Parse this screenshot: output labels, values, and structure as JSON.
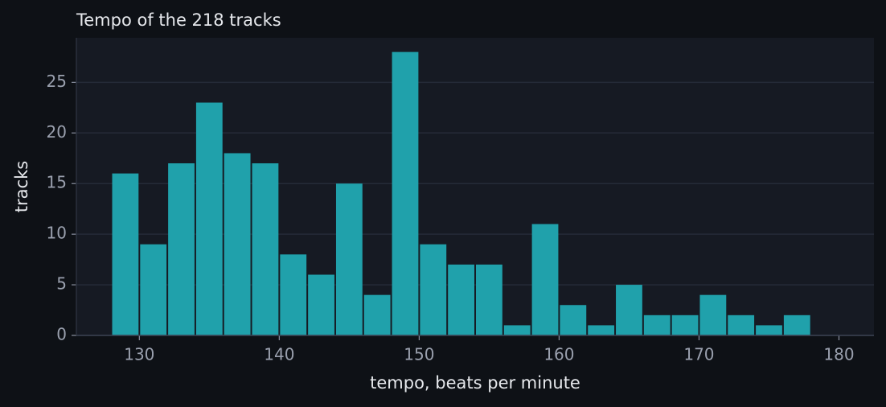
{
  "chart_data": {
    "type": "histogram",
    "title": "Tempo of the 218 tracks",
    "x_label": "tempo, beats per minute",
    "y_label": "tracks",
    "bins": [
      128,
      130,
      132,
      134,
      136,
      138,
      140,
      142,
      144,
      146,
      148,
      150,
      152,
      154,
      156,
      158,
      160,
      162,
      164,
      166,
      168,
      170,
      172,
      174,
      176,
      178
    ],
    "values": [
      16,
      9,
      17,
      23,
      18,
      17,
      8,
      6,
      15,
      4,
      28,
      9,
      7,
      7,
      1,
      11,
      3,
      1,
      5,
      2,
      2,
      4,
      2,
      1,
      2
    ],
    "color": "#20a1ab",
    "xlim": [
      125.5,
      182.5
    ],
    "xticks": [
      130,
      140,
      150,
      160,
      170,
      180
    ],
    "ylim": [
      0,
      29.4
    ],
    "yticks": [
      0,
      5,
      10,
      15,
      20,
      25
    ],
    "grid": true
  }
}
